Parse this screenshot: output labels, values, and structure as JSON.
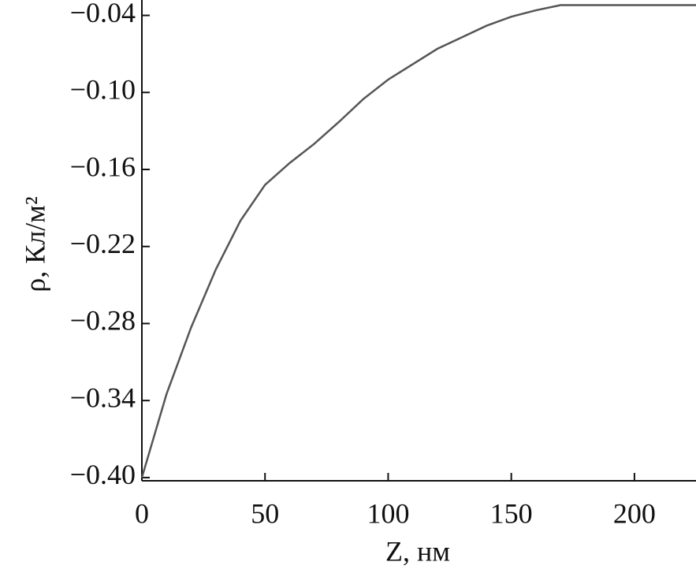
{
  "chart_data": {
    "type": "line",
    "xlabel": "Z, нм",
    "ylabel": "ρ, Кл/м²",
    "x": [
      0,
      10,
      20,
      30,
      40,
      50,
      60,
      70,
      80,
      90,
      100,
      110,
      120,
      130,
      140,
      150,
      160,
      170,
      180,
      190,
      200,
      210,
      220,
      225
    ],
    "series": [
      {
        "color": "#555555",
        "values": [
          -0.4,
          -0.335,
          -0.283,
          -0.238,
          -0.2,
          -0.172,
          -0.155,
          -0.14,
          -0.123,
          -0.105,
          -0.09,
          -0.078,
          -0.066,
          -0.057,
          -0.048,
          -0.041,
          -0.036,
          -0.032,
          -0.032,
          -0.032,
          -0.032,
          -0.032,
          -0.032,
          -0.032
        ]
      }
    ],
    "xlim": [
      0,
      225
    ],
    "xticks": [
      0,
      50,
      100,
      150,
      200
    ],
    "ylim": [
      -0.4025,
      -0.028
    ],
    "yticks": [
      {
        "value": -0.4,
        "label": "−0.40"
      },
      {
        "value": -0.34,
        "label": "−0.34"
      },
      {
        "value": -0.28,
        "label": "−0.28"
      },
      {
        "value": -0.22,
        "label": "−0.22"
      },
      {
        "value": -0.16,
        "label": "−0.16"
      },
      {
        "value": -0.1,
        "label": "−0.10"
      },
      {
        "value": -0.04,
        "label": "−0.04"
      }
    ],
    "grid": false
  }
}
